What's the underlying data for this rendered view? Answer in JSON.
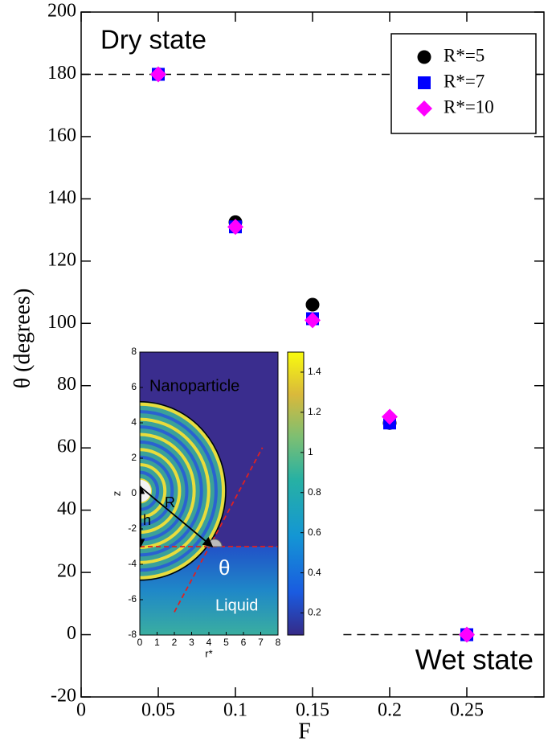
{
  "chart_data": [
    {
      "type": "scatter",
      "xlabel": "F",
      "ylabel": "θ (degrees)",
      "xlim": [
        0,
        0.3
      ],
      "ylim": [
        -20,
        200
      ],
      "xticks": [
        0,
        0.05,
        0.1,
        0.15,
        0.2,
        0.25
      ],
      "yticks": [
        -20,
        0,
        20,
        40,
        60,
        80,
        100,
        120,
        140,
        160,
        180,
        200
      ],
      "x": [
        0.05,
        0.1,
        0.15,
        0.2,
        0.25
      ],
      "series": [
        {
          "name": "R*=5",
          "color": "#000000",
          "marker": "circle",
          "values": [
            180,
            132.5,
            106,
            68,
            0
          ]
        },
        {
          "name": "R*=7",
          "color": "#0000ff",
          "marker": "square",
          "values": [
            180,
            131,
            101.5,
            68,
            0
          ]
        },
        {
          "name": "R*=10",
          "color": "#ff00ff",
          "marker": "diamond",
          "values": [
            180,
            131,
            101,
            70,
            0
          ]
        }
      ],
      "legend": "upper right",
      "hlines": [
        {
          "y": 180,
          "xmin": 0
        },
        {
          "y": 0,
          "xmin": 0.17
        }
      ],
      "annotations": [
        {
          "text": "Dry state"
        },
        {
          "text": "Wet state"
        }
      ]
    },
    {
      "type": "heatmap",
      "xlabel": "r*",
      "ylabel": "z",
      "xlim": [
        0,
        8
      ],
      "ylim": [
        -8,
        8
      ],
      "xticks": [
        0,
        1,
        2,
        3,
        4,
        5,
        6,
        7,
        8
      ],
      "yticks": [
        -8,
        -6,
        -4,
        -2,
        0,
        2,
        4,
        6,
        8
      ],
      "clim": [
        0.09,
        1.5
      ],
      "cticks": [
        0.2,
        0.4,
        0.6,
        0.8,
        1,
        1.2,
        1.4
      ],
      "annotations": [
        {
          "text": "Nanoparticle"
        },
        {
          "text": "Liquid"
        },
        {
          "text": "θ"
        },
        {
          "text": "R"
        },
        {
          "text": "h"
        }
      ]
    }
  ]
}
